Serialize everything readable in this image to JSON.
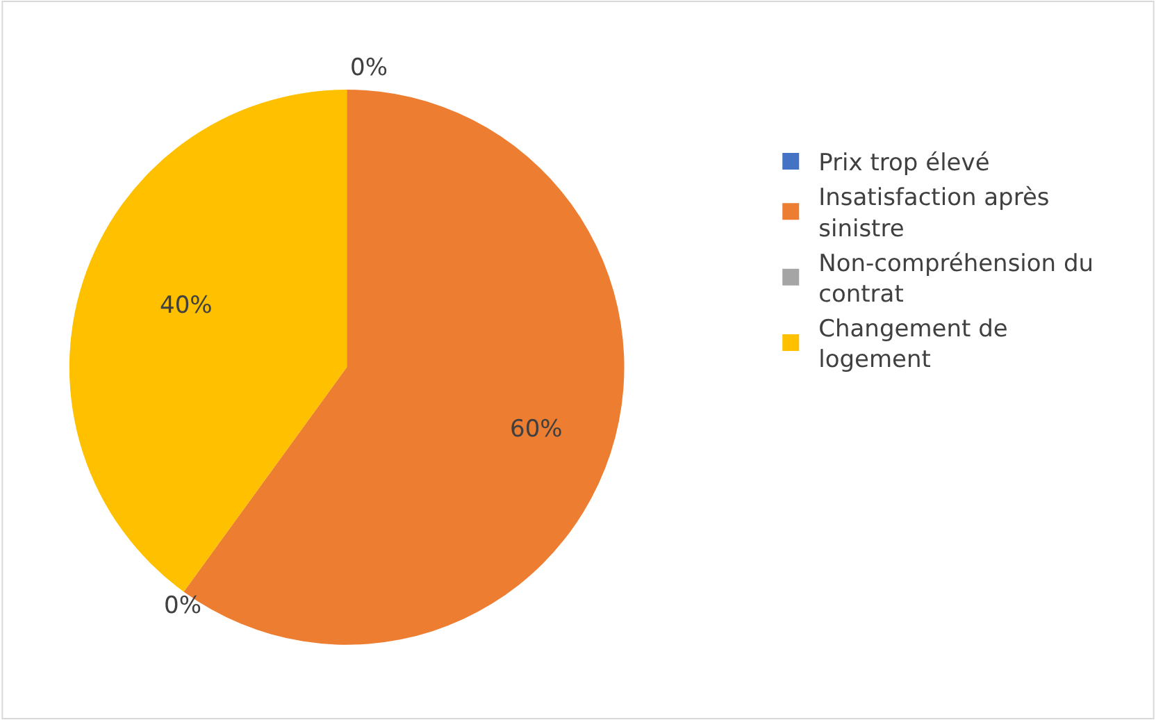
{
  "chart_data": {
    "type": "pie",
    "categories": [
      "Prix trop élevé",
      "Insatisfaction après sinistre",
      "Non-compréhension du contrat",
      "Changement de logement"
    ],
    "values": [
      0,
      60,
      0,
      40
    ],
    "colors": [
      "#4472c4",
      "#ed7d31",
      "#a5a5a5",
      "#ffc000"
    ],
    "value_labels": [
      "0%",
      "60%",
      "0%",
      "40%"
    ],
    "legend": "right"
  }
}
